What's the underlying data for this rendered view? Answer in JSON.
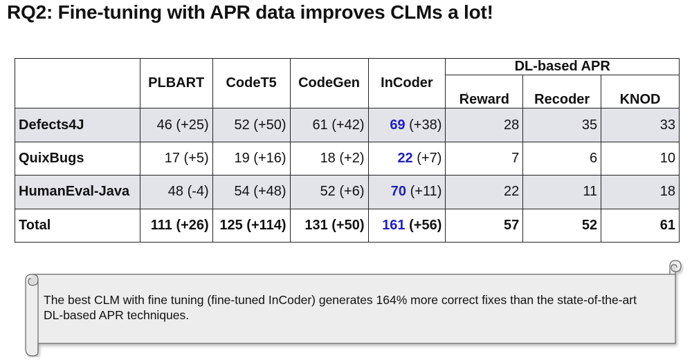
{
  "title": "RQ2: Fine-tuning with APR data improves CLMs a lot!",
  "table": {
    "clm_headers": [
      "PLBART",
      "CodeT5",
      "CodeGen",
      "InCoder"
    ],
    "dl_group": "DL-based APR",
    "dl_headers": [
      "Reward",
      "Recoder",
      "KNOD"
    ],
    "rows": [
      {
        "name": "Defects4J",
        "plbart": "46 (+25)",
        "codet5": "52 (+50)",
        "codegen": "61 (+42)",
        "incoder_val": "69",
        "incoder_delta": " (+38)",
        "reward": "28",
        "recoder": "35",
        "knod": "33"
      },
      {
        "name": "QuixBugs",
        "plbart": "17 (+5)",
        "codet5": "19 (+16)",
        "codegen": "18 (+2)",
        "incoder_val": "22",
        "incoder_delta": " (+7)",
        "reward": "7",
        "recoder": "6",
        "knod": "10"
      },
      {
        "name": "HumanEval-Java",
        "plbart": "48 (-4)",
        "codet5": "54 (+48)",
        "codegen": "52 (+6)",
        "incoder_val": "70",
        "incoder_delta": " (+11)",
        "reward": "22",
        "recoder": "11",
        "knod": "18"
      },
      {
        "name": "Total",
        "plbart": "111 (+26)",
        "codet5": "125 (+114)",
        "codegen": "131 (+50)",
        "incoder_val": "161",
        "incoder_delta": " (+56)",
        "reward": "57",
        "recoder": "52",
        "knod": "61"
      }
    ]
  },
  "callout": {
    "text": "The best CLM with fine tuning (fine-tuned InCoder) generates 164% more correct fixes than the state-of-the-art DL-based APR techniques."
  },
  "colors": {
    "highlight": "#1f1fbf",
    "row_shade": "#e3e4ea",
    "scroll_fill": "#ededed"
  }
}
